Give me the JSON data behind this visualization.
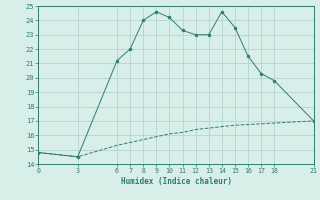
{
  "xlabel": "Humidex (Indice chaleur)",
  "line1_x": [
    0,
    3,
    6,
    7,
    8,
    9,
    10,
    11,
    12,
    13,
    14,
    15,
    16,
    17,
    18,
    21
  ],
  "line1_y": [
    14.8,
    14.5,
    21.2,
    22.0,
    24.0,
    24.6,
    24.2,
    23.3,
    23.0,
    23.0,
    24.6,
    23.5,
    21.5,
    20.3,
    19.8,
    17.0
  ],
  "line2_x": [
    0,
    3,
    6,
    7,
    8,
    9,
    10,
    11,
    12,
    13,
    14,
    15,
    16,
    17,
    18,
    21
  ],
  "line2_y": [
    14.8,
    14.5,
    15.3,
    15.5,
    15.7,
    15.9,
    16.1,
    16.2,
    16.4,
    16.5,
    16.6,
    16.7,
    16.75,
    16.8,
    16.85,
    17.0
  ],
  "line_color": "#2e7d6e",
  "bg_color": "#d8eee9",
  "grid_color": "#b0cdc9",
  "xticks": [
    0,
    3,
    6,
    7,
    8,
    9,
    10,
    11,
    12,
    13,
    14,
    15,
    16,
    17,
    18,
    21
  ],
  "yticks": [
    14,
    15,
    16,
    17,
    18,
    19,
    20,
    21,
    22,
    23,
    24,
    25
  ],
  "xlim": [
    0,
    21
  ],
  "ylim": [
    14,
    25
  ]
}
